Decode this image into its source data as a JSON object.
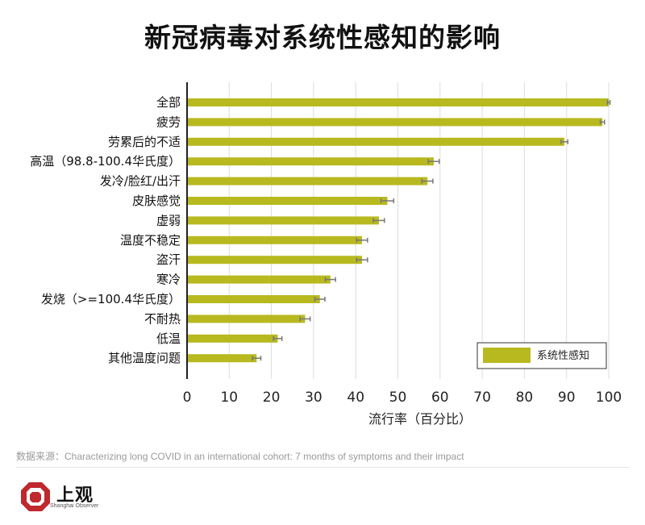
{
  "title": "新冠病毒对系统性感知的影响",
  "source_text": "数据来源：Characterizing long COVID in an international cohort: 7 months of symptoms and their impact",
  "logo": {
    "name_cn": "上观",
    "name_en": "Shanghai Observer"
  },
  "colors": {
    "bar": "#b8b91f",
    "error": "#777777",
    "axis": "#222222",
    "grid": "#dddddd",
    "logo_red": "#c0282d"
  },
  "chart_data": {
    "type": "bar",
    "orientation": "horizontal",
    "categories": [
      "全部",
      "疲劳",
      "劳累后的不适",
      "高温（98.8-100.4华氏度）",
      "发冷/脸红/出汗",
      "皮肤感觉",
      "虚弱",
      "温度不稳定",
      "盗汗",
      "寒冷",
      "发烧（>=100.4华氏度）",
      "不耐热",
      "低温",
      "其他温度问题"
    ],
    "series": [
      {
        "name": "系统性感知",
        "values": [
          100,
          98.5,
          89.5,
          58.5,
          57,
          47.5,
          45.5,
          41.5,
          41.5,
          34,
          31.5,
          28,
          21.5,
          16.5
        ],
        "error": [
          0.3,
          0.5,
          0.8,
          1.3,
          1.3,
          1.5,
          1.3,
          1.3,
          1.3,
          1.2,
          1.2,
          1.2,
          1.0,
          1.0
        ]
      }
    ],
    "xlabel": "流行率（百分比）",
    "ylabel": "",
    "xlim": [
      0,
      100
    ],
    "xticks": [
      0,
      10,
      20,
      30,
      40,
      50,
      60,
      70,
      80,
      90,
      100
    ],
    "grid": "vertical",
    "legend": "bottom-right"
  }
}
